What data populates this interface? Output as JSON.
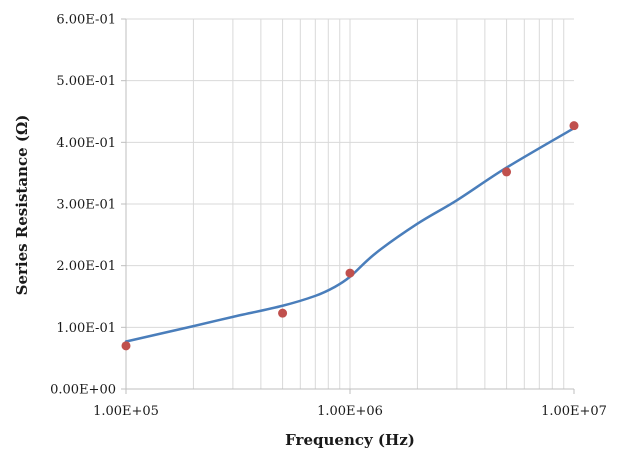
{
  "chart_data": {
    "type": "scatter",
    "title": "",
    "xlabel": "Frequency (Hz)",
    "ylabel": "Series Resistance (Ω)",
    "xscale": "log",
    "xlim": [
      100000,
      10000000
    ],
    "ylim": [
      0,
      0.6
    ],
    "xticks": [
      100000,
      1000000,
      10000000
    ],
    "xtick_labels": [
      "1.00E+05",
      "1.00E+06",
      "1.00E+07"
    ],
    "yticks": [
      0,
      0.1,
      0.2,
      0.3,
      0.4,
      0.5,
      0.6
    ],
    "ytick_labels": [
      "0.00E+00",
      "1.00E-01",
      "2.00E-01",
      "3.00E-01",
      "4.00E-01",
      "5.00E-01",
      "6.00E-01"
    ],
    "grid": true,
    "legend": "none",
    "series": [
      {
        "kind": "markers",
        "color": "#c0504d",
        "x": [
          100000,
          500000,
          1000000,
          5000000,
          10000000
        ],
        "y": [
          0.07,
          0.123,
          0.188,
          0.352,
          0.427
        ]
      },
      {
        "kind": "smooth-line",
        "color": "#4a7ebb",
        "x": [
          100000,
          200000,
          300000,
          500000,
          700000,
          850000,
          1000000,
          1300000,
          2000000,
          3000000,
          5000000,
          10000000
        ],
        "y": [
          0.077,
          0.102,
          0.117,
          0.135,
          0.151,
          0.165,
          0.182,
          0.22,
          0.268,
          0.306,
          0.359,
          0.423
        ]
      }
    ]
  }
}
